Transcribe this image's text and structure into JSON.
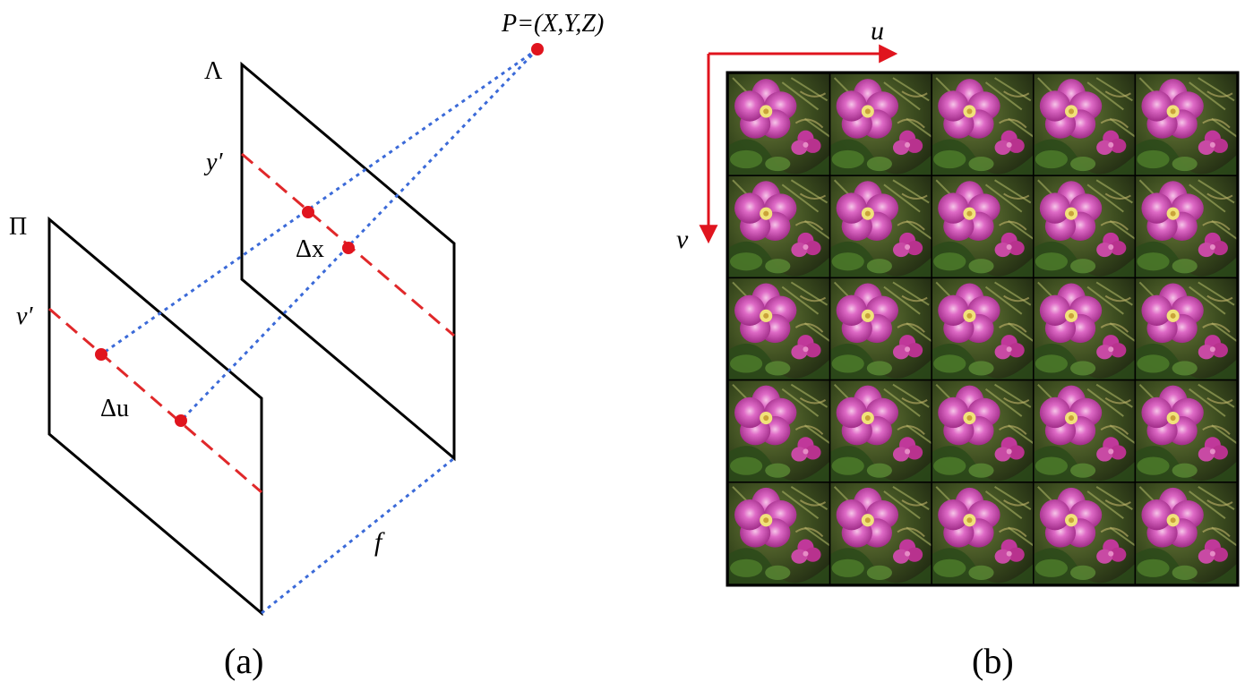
{
  "panel_a": {
    "caption": "(a)",
    "plane_pi_label": "Π",
    "plane_lambda_label": "Λ",
    "point_label": "P=(X,Y,Z)",
    "y_prime_label": "y′",
    "v_prime_label": "v′",
    "delta_x_label": "Δx",
    "delta_u_label": "Δu",
    "focal_label": "f",
    "colors": {
      "plane_edge": "#000000",
      "epipolar_line": "#e0282a",
      "ray": "#3b6ad8",
      "point": "#e0141e"
    }
  },
  "panel_b": {
    "caption": "(b)",
    "u_axis_label": "u",
    "v_axis_label": "v",
    "grid_rows": 5,
    "grid_cols": 5,
    "colors": {
      "axis": "#e0141e",
      "border": "#000000",
      "petal": "#d04cb0",
      "foliage": "#3f5a22"
    }
  }
}
